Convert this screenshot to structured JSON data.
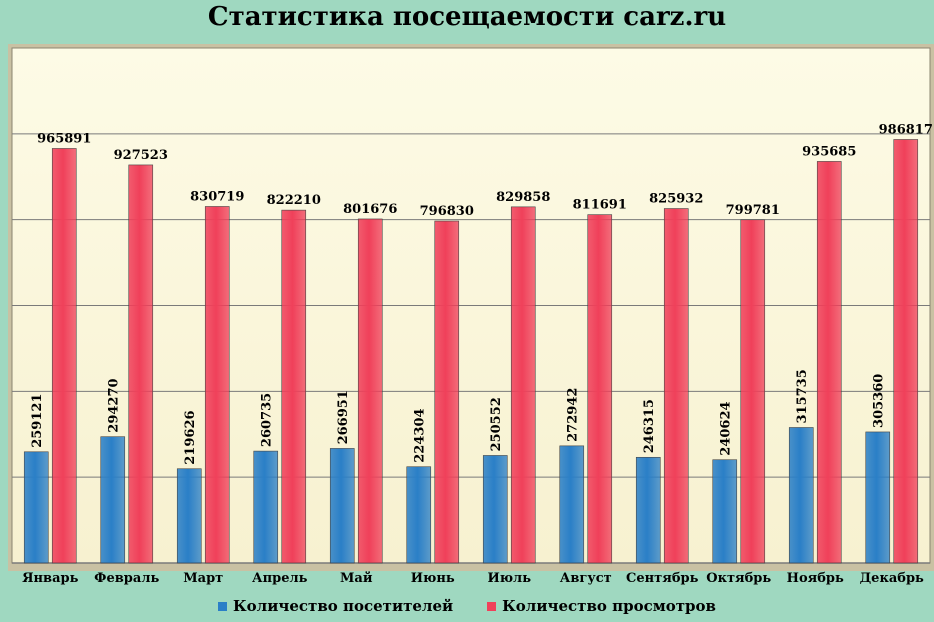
{
  "chart_data": {
    "type": "bar",
    "title": "Статистика посещаемости carz.ru",
    "categories": [
      "Январь",
      "Февраль",
      "Март",
      "Апрель",
      "Май",
      "Июнь",
      "Июль",
      "Август",
      "Сентябрь",
      "Октябрь",
      "Ноябрь",
      "Декабрь"
    ],
    "series": [
      {
        "name": "Количество посетителей",
        "color": "#2a7fc7",
        "values": [
          259121,
          294270,
          219626,
          260735,
          266951,
          224304,
          250552,
          272942,
          246315,
          240624,
          315735,
          305360
        ]
      },
      {
        "name": "Количество просмотров",
        "color": "#f0405a",
        "values": [
          965891,
          927523,
          830719,
          822210,
          801676,
          796830,
          829858,
          811691,
          825932,
          799781,
          935685,
          986817
        ]
      }
    ],
    "ylim": [
      0,
      1200000
    ],
    "grid": true,
    "legend_position": "bottom"
  }
}
